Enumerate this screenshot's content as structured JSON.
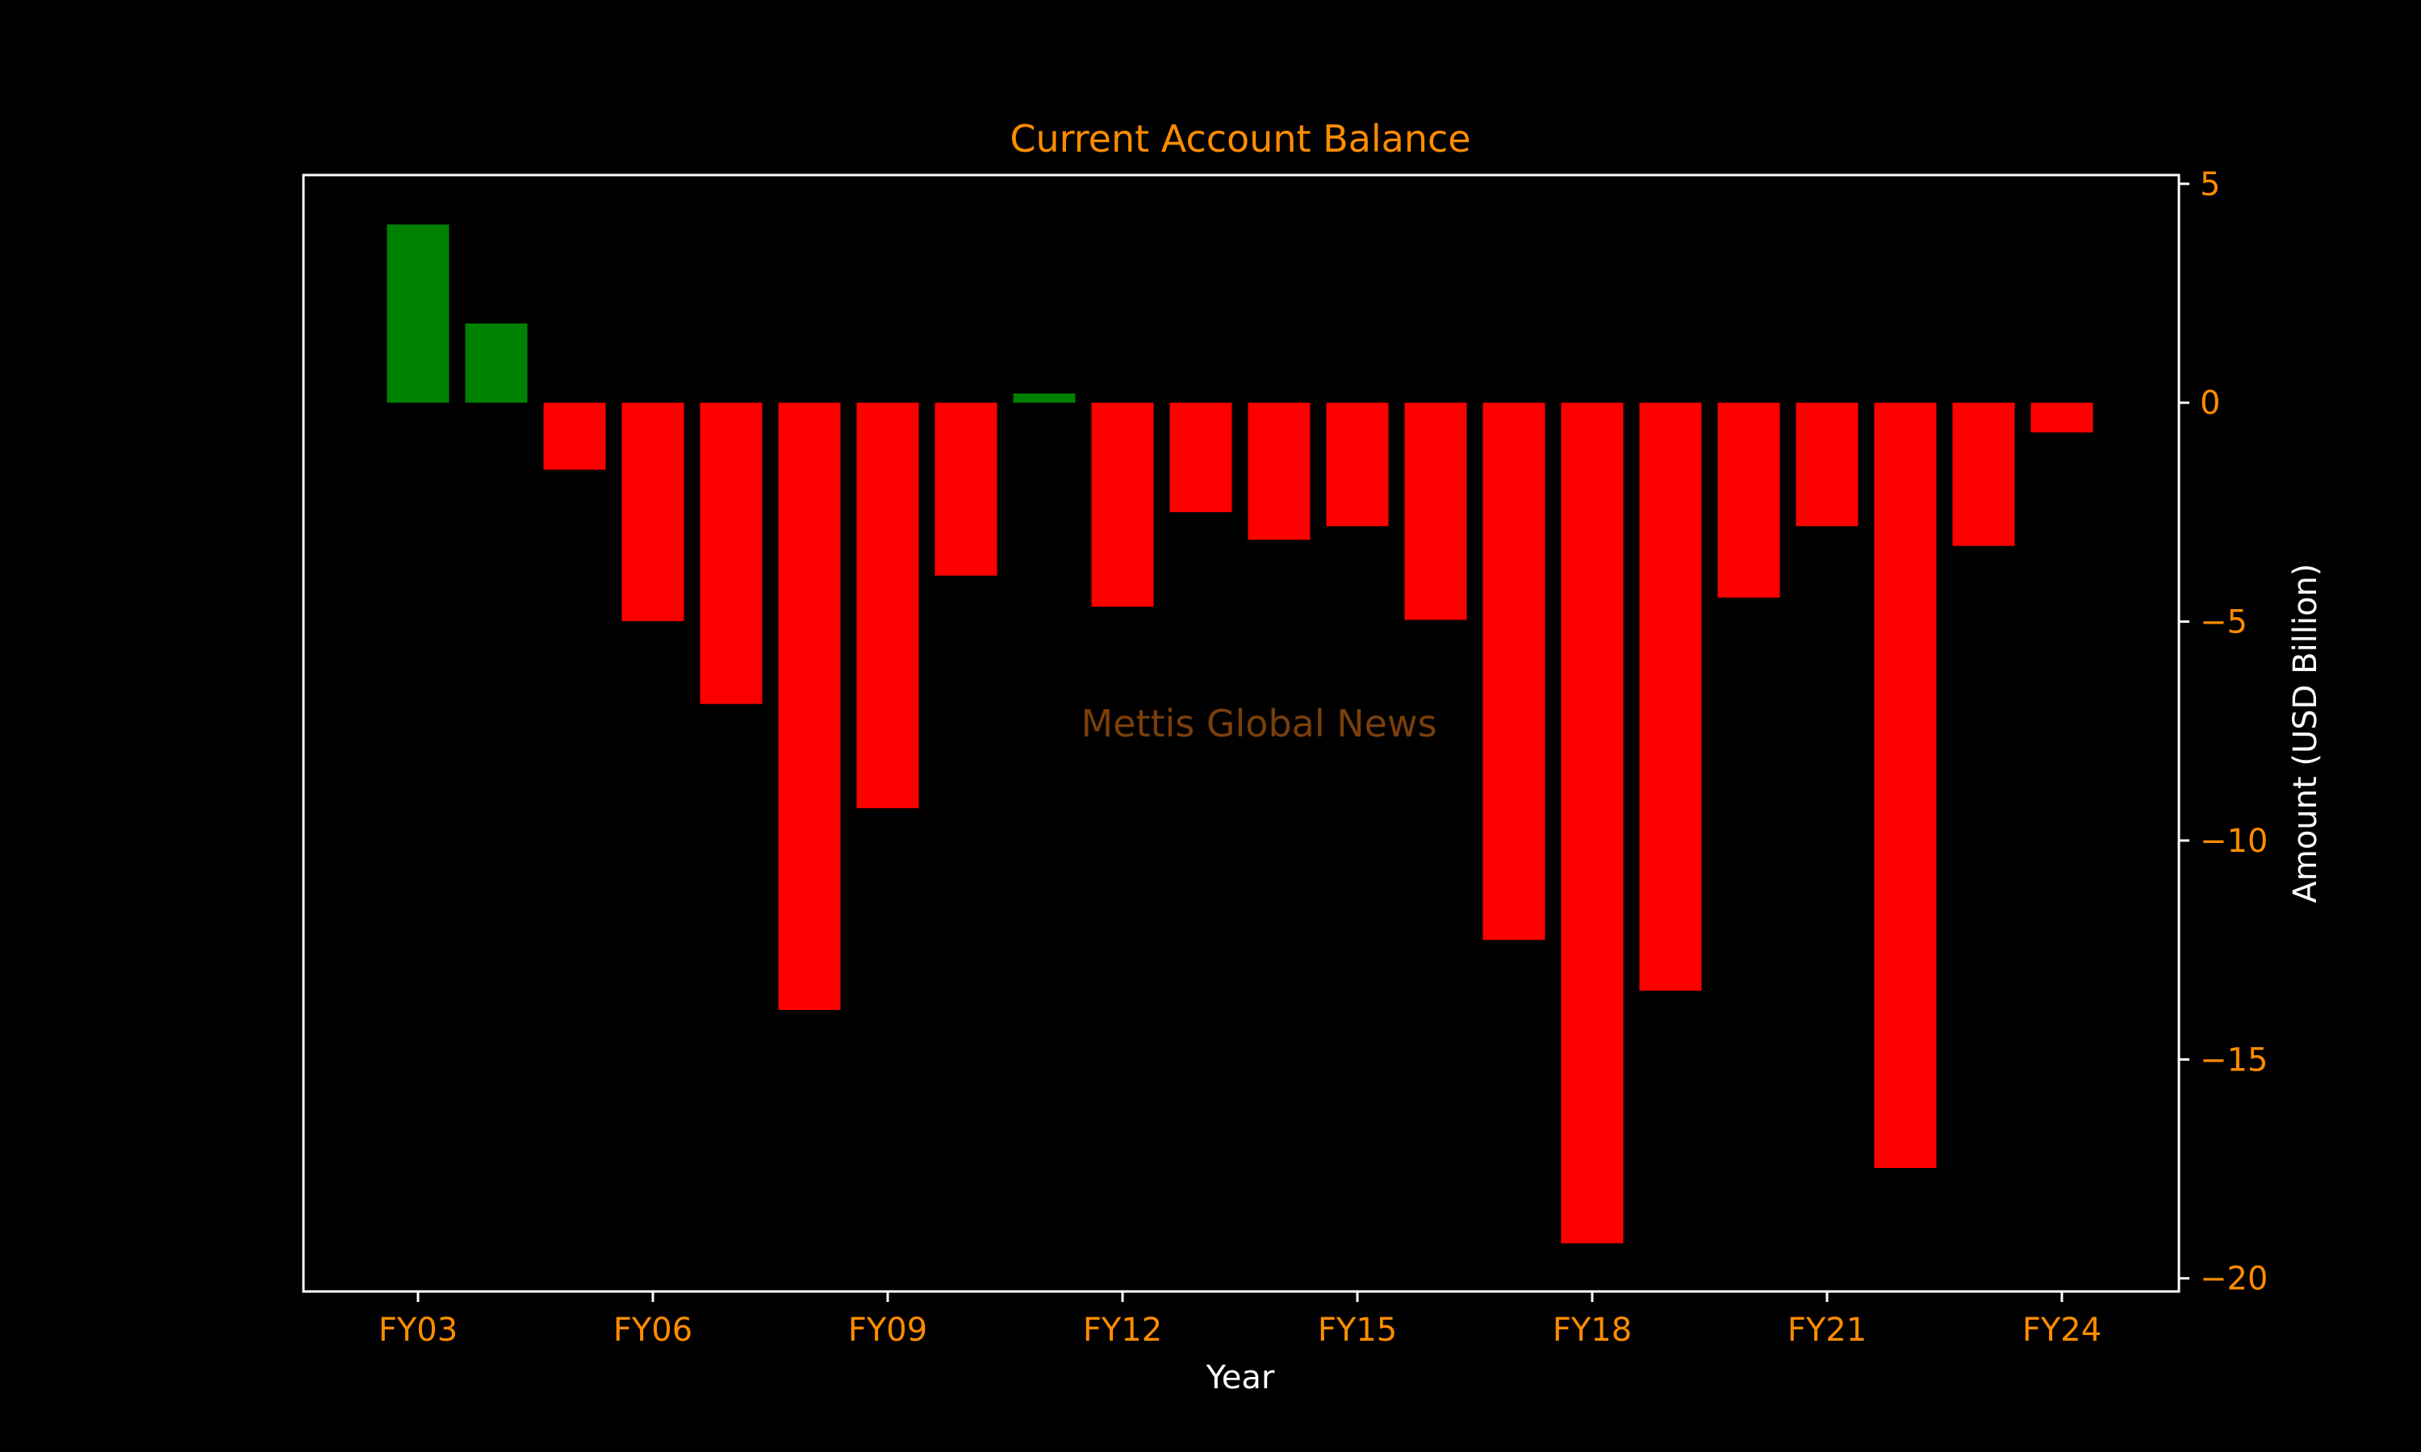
{
  "chart_data": {
    "type": "bar",
    "title": "Current Account Balance",
    "xlabel": "Year",
    "ylabel": "Amount (USD Billion)",
    "watermark": "Mettis Global News",
    "categories": [
      "FY03",
      "FY04",
      "FY05",
      "FY06",
      "FY07",
      "FY08",
      "FY09",
      "FY10",
      "FY11",
      "FY12",
      "FY13",
      "FY14",
      "FY15",
      "FY16",
      "FY17",
      "FY18",
      "FY19",
      "FY20",
      "FY21",
      "FY22",
      "FY23",
      "FY24"
    ],
    "values": [
      4.07,
      1.81,
      -1.53,
      -4.99,
      -6.88,
      -13.87,
      -9.26,
      -3.95,
      0.21,
      -4.66,
      -2.5,
      -3.13,
      -2.82,
      -4.96,
      -12.27,
      -19.2,
      -13.43,
      -4.45,
      -2.82,
      -17.48,
      -3.27,
      -0.68
    ],
    "xticks": [
      "FY03",
      "FY06",
      "FY09",
      "FY12",
      "FY15",
      "FY18",
      "FY21",
      "FY24"
    ],
    "yticks": [
      5,
      0,
      -5,
      -10,
      -15,
      -20
    ],
    "ytick_labels": [
      "5",
      "0",
      "−5",
      "−10",
      "−15",
      "−20"
    ],
    "ylim": [
      -20.3,
      5.2
    ],
    "y_axis_side": "right",
    "grid": false,
    "legend": "none",
    "colors": {
      "background": "#000000",
      "positive": "#008000",
      "negative": "#ff0000",
      "title": "#ff8c00",
      "ticks": "#ff8c00",
      "axis_labels": "#ffffff",
      "frame": "#ffffff",
      "watermark": "#7a3f0a"
    }
  }
}
